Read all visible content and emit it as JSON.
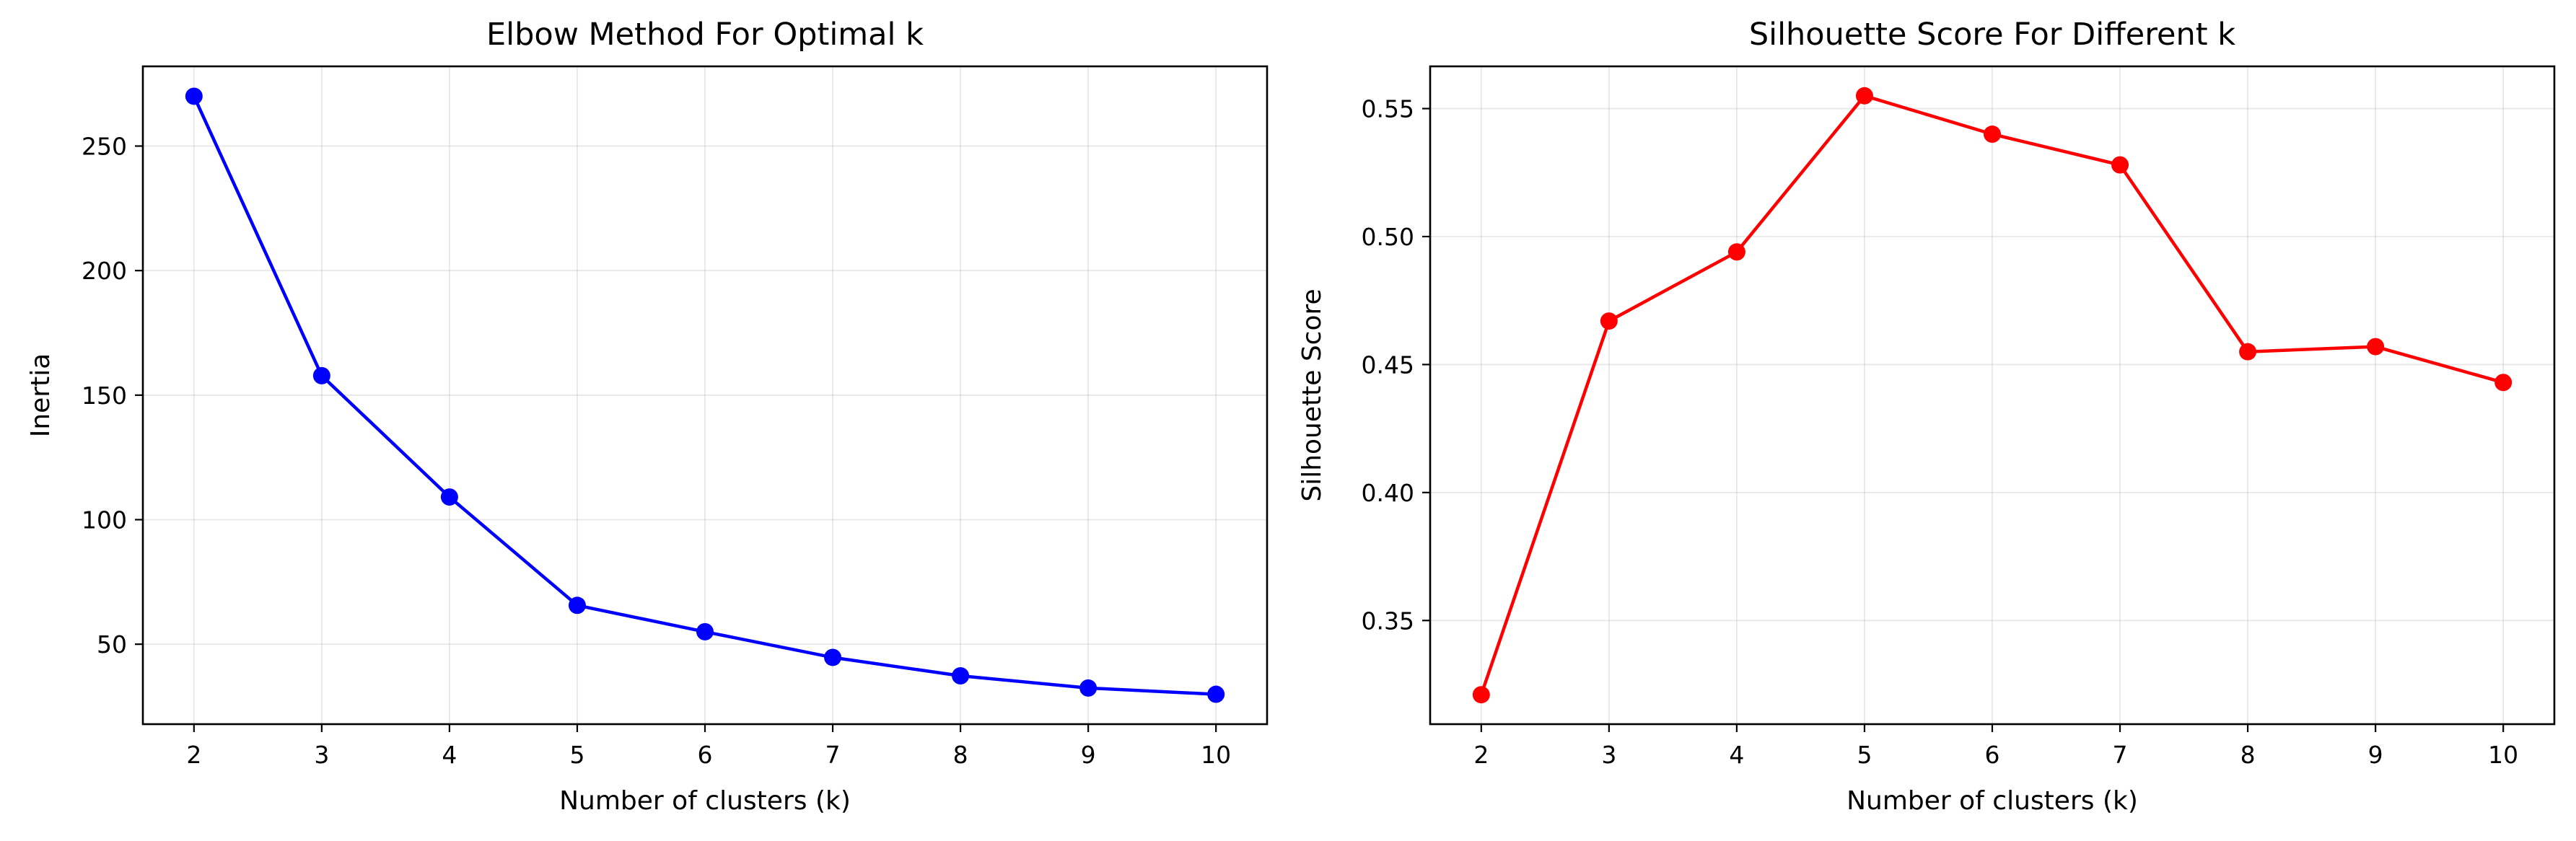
{
  "chart_data": [
    {
      "type": "line",
      "title": "Elbow Method For Optimal k",
      "xlabel": "Number of clusters (k)",
      "ylabel": "Inertia",
      "x": [
        2,
        3,
        4,
        5,
        6,
        7,
        8,
        9,
        10
      ],
      "series": [
        {
          "values": [
            270.0,
            157.8,
            109.1,
            65.6,
            55.0,
            44.7,
            37.3,
            32.4,
            29.9
          ],
          "color": "#0000ff",
          "marker": "circle"
        }
      ],
      "xticks": [
        2,
        3,
        4,
        5,
        6,
        7,
        8,
        9,
        10
      ],
      "yticks": [
        50,
        100,
        150,
        200,
        250
      ],
      "xlim": [
        1.6,
        10.4
      ],
      "ylim": [
        17.9,
        282.0
      ],
      "grid": true
    },
    {
      "type": "line",
      "title": "Silhouette Score For Different k",
      "xlabel": "Number of clusters (k)",
      "ylabel": "Silhouette Score",
      "x": [
        2,
        3,
        4,
        5,
        6,
        7,
        8,
        9,
        10
      ],
      "series": [
        {
          "values": [
            0.321,
            0.467,
            0.494,
            0.555,
            0.54,
            0.528,
            0.455,
            0.457,
            0.443
          ],
          "color": "#ff0000",
          "marker": "circle"
        }
      ],
      "xticks": [
        2,
        3,
        4,
        5,
        6,
        7,
        8,
        9,
        10
      ],
      "yticks": [
        0.35,
        0.4,
        0.45,
        0.5,
        0.55
      ],
      "ytick_labels": [
        "0.35",
        "0.40",
        "0.45",
        "0.50",
        "0.55"
      ],
      "xlim": [
        1.6,
        10.4
      ],
      "ylim": [
        0.3095,
        0.5665
      ],
      "grid": true
    }
  ]
}
